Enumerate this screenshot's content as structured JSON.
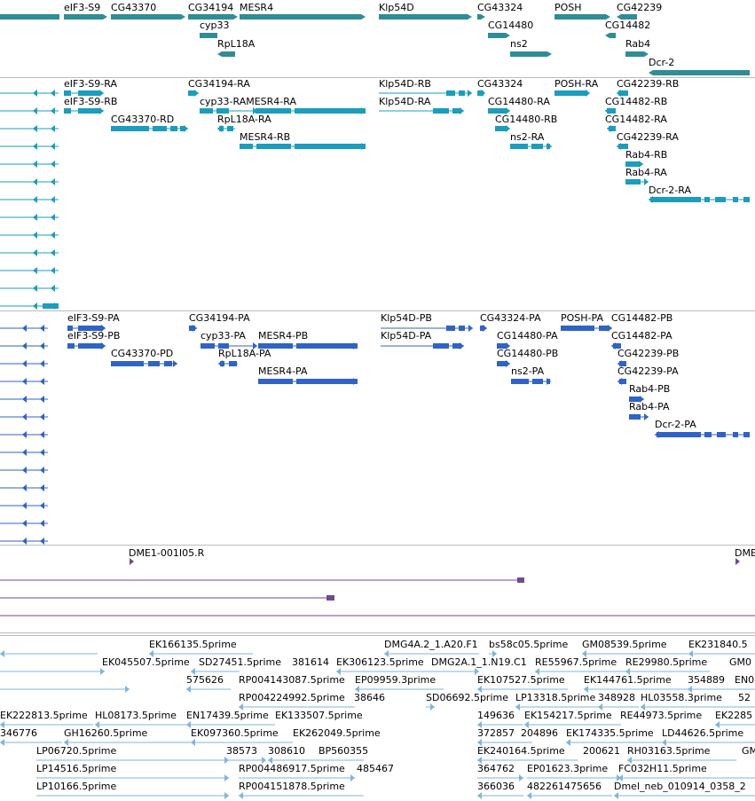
{
  "colors": {
    "gene": "#2f8d96",
    "transcript_ra": "#1b9dbd",
    "transcript_pa": "#2f63c7",
    "cdna": "#6e4a96",
    "est": "#7fb6db"
  },
  "tracks": {
    "genes": {
      "labels": [
        "eIF3-S9",
        "CG43370",
        "CG34194",
        "MESR4",
        "Klp54D",
        "CG43324",
        "POSH",
        "CG42239",
        "cyp33",
        "CG14480",
        "CG14482",
        "RpL18A",
        "ns2",
        "Rab4",
        "Dcr-2"
      ]
    },
    "transcripts": {
      "labels": [
        "eIF3-S9-RA",
        "CG34194-RA",
        "Klp54D-RB",
        "CG43324",
        "POSH-RA",
        "CG42239-RB",
        "eIF3-S9-RB",
        "cyp33-RAMESR4-RA",
        "Klp54D-RA",
        "CG14480-RA",
        "CG14482-RB",
        "CG43370-RD",
        "CG14480-RB",
        "CG14482-RA",
        "RpL18A-RA",
        "MESR4-RB",
        "ns2-RA",
        "CG42239-RA",
        "Rab4-RB",
        "Rab4-RA",
        "Dcr-2-RA"
      ]
    },
    "proteins": {
      "labels": [
        "eIF3-S9-PA",
        "CG34194-PA",
        "Klp54D-PB",
        "CG43324-PA",
        "POSH-PA",
        "CG14482-PB",
        "eIF3-S9-PB",
        "cyp33-PA",
        "MESR4-PB",
        "Klp54D-PA",
        "CG14480-PA",
        "CG14482-PA",
        "CG43370-PD",
        "RpL18A-PA",
        "CG14480-PB",
        "CG42239-PB",
        "MESR4-PA",
        "ns2-PA",
        "CG42239-PA",
        "Rab4-PB",
        "Rab4-PA",
        "Dcr-2-PA"
      ]
    },
    "cdna": {
      "labels": [
        "DME1-001I05.R",
        "DME"
      ]
    },
    "ests": {
      "labels": [
        "EK166135.5prime",
        "DMG4A.2_1.A20.F1",
        "bs58c05.5prime",
        "GM08539.5prime",
        "EK231840.5",
        "EK045507.5prime",
        "SD27451.5prime",
        "381614",
        "EK306123.5prime",
        "DMG2A.1_1.N19.C1",
        "RE55967.5prime",
        "RE29980.5prime",
        "GM0",
        "575626",
        "RP004143087.5prime",
        "EP09959.3prime",
        "EK107527.5prime",
        "EK144761.5prime",
        "354889",
        "EN0",
        "RP004224992.5prime",
        "38646",
        "SD06692.5prime",
        "LP13318.5prime",
        "348928",
        "HL03558.3prime",
        "52",
        "EK222813.5prime",
        "HL08173.5prime",
        "EN17439.5prime",
        "EK133507.5prime",
        "149636",
        "EK154217.5prime",
        "RE44973.5prime",
        "EK2285",
        "346776",
        "GH16260.5prime",
        "EK097360.5prime",
        "EK262049.5prime",
        "372857",
        "204896",
        "EK174335.5prime",
        "LD44626.5prime",
        "EK240164.5prime",
        "200621",
        "RH03163.5prime",
        "GM",
        "LP06720.5prime",
        "38573",
        "308610",
        "BP560355",
        "364762",
        "EP01623.3prime",
        "FC032H11.5prime",
        "LP14516.5prime",
        "RP004486917.5prime",
        "485467",
        "366036",
        "482261475656",
        "Dmel_neb_010914_0358_2",
        "LP10166.5prime",
        "RP004151878.5prime"
      ]
    }
  }
}
